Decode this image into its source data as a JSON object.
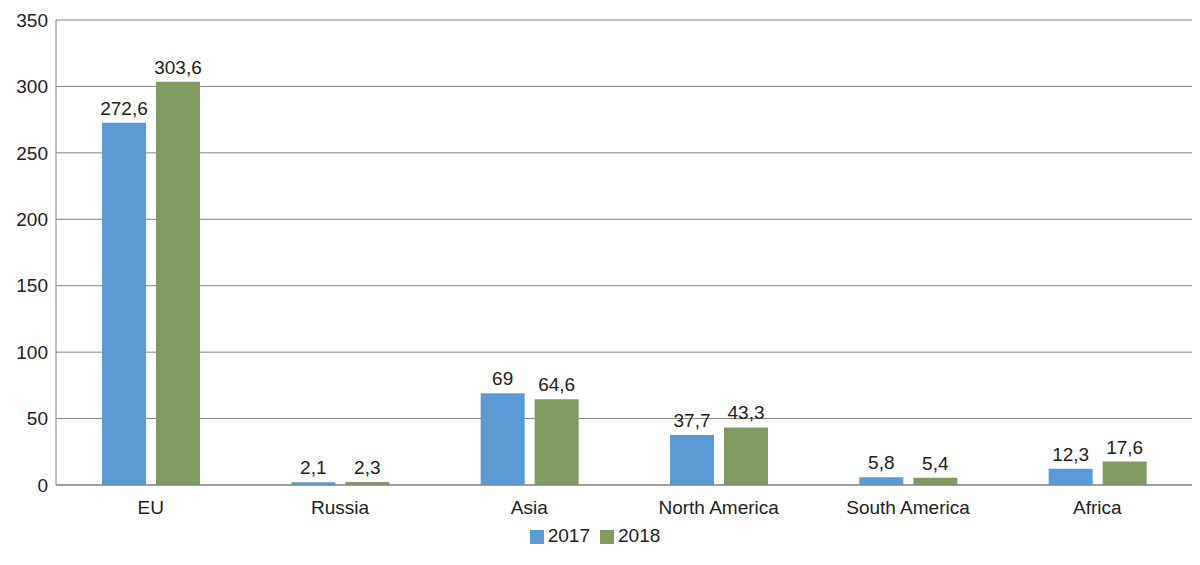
{
  "chart_data": {
    "type": "bar",
    "categories": [
      "EU",
      "Russia",
      "Asia",
      "North America",
      "South America",
      "Africa"
    ],
    "series": [
      {
        "name": "2017",
        "color": "#5b9bd5",
        "values": [
          272.6,
          2.1,
          69,
          37.7,
          5.8,
          12.3
        ],
        "value_labels": [
          "272,6",
          "2,1",
          "69",
          "37,7",
          "5,8",
          "12,3"
        ]
      },
      {
        "name": "2018",
        "color": "#7f9b61",
        "values": [
          303.6,
          2.3,
          64.6,
          43.3,
          5.4,
          17.6
        ],
        "value_labels": [
          "303,6",
          "2,3",
          "64,6",
          "43,3",
          "5,4",
          "17,6"
        ]
      }
    ],
    "ylim": [
      0,
      350
    ],
    "yticks": [
      0,
      50,
      100,
      150,
      200,
      250,
      300,
      350
    ],
    "grid": true,
    "legend": "bottom",
    "data_labels": true
  }
}
